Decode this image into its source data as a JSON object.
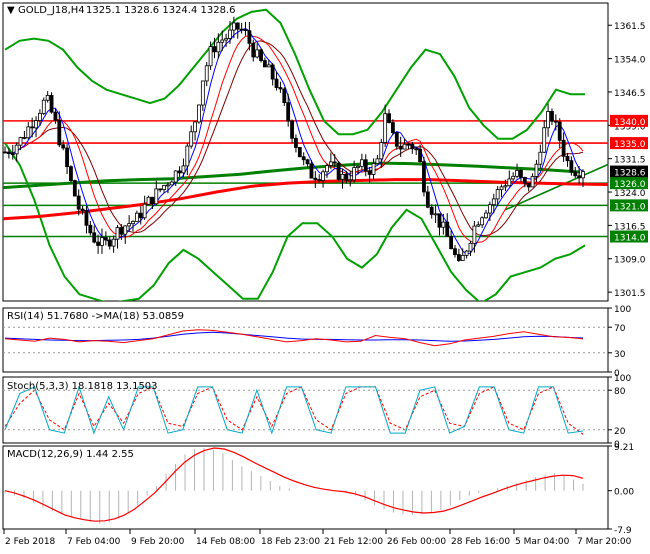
{
  "header": {
    "symbol_text": "GOLD_J18,H4",
    "ohlc_text": "1325.1 1328.6 1324.4 1328.6"
  },
  "rsi": {
    "label": "RSI(14) 51.7680  ->MA(18) 53.0859",
    "axis": [
      "100",
      "70",
      "30",
      "0"
    ]
  },
  "stoch": {
    "label": "Stoch(5,3,3) 18.1818 13.1503",
    "axis": [
      "100",
      "80",
      "20",
      "0"
    ]
  },
  "macd": {
    "label": "MACD(12,26,9) 1.44 2.55",
    "axis": [
      "9.21",
      "0.00",
      "-7.9"
    ]
  },
  "x_labels": [
    "2 Feb 2018",
    "7 Feb 04:00",
    "9 Feb 20:00",
    "14 Feb 08:00",
    "18 Feb 23:00",
    "21 Feb 12:00",
    "26 Feb 00:00",
    "28 Feb 16:00",
    "5 Mar 04:00",
    "7 Mar 20:00"
  ],
  "colors": {
    "candle": "#000000",
    "bollinger": "#00a000",
    "ma_slow": "#008000",
    "ma_red": "#ff0000",
    "ma_blue": "#0000ff",
    "ma_maroon": "#800000",
    "rsi_line": "#ff0000",
    "rsi_ma": "#0000ff",
    "stoch_main": "#00aac8",
    "stoch_signal": "#ff0000",
    "macd_hist": "#b4b4b4",
    "macd_signal": "#ff0000",
    "red_level": "#ff0000",
    "green_level": "#008000",
    "current_price_bg": "#000000"
  },
  "chart_data": [
    {
      "type": "candlestick",
      "title": "GOLD_J18,H4",
      "ylim": [
        1299.5,
        1366.5
      ],
      "y_ticks": [
        1301.5,
        1309.0,
        1316.5,
        1324.0,
        1331.5,
        1339.0,
        1346.5,
        1354.0,
        1361.5
      ],
      "y_tick_labels": [
        "1301.5",
        "1309.0",
        "1316.5",
        "1324.0",
        "1331.5",
        "1339.0",
        "1346.5",
        "1354.0",
        "1361.5"
      ],
      "current_price": 1328.6,
      "current_price_label": "1328.6",
      "levels": [
        {
          "value": 1340.0,
          "label": "1340.0",
          "kind": "red"
        },
        {
          "value": 1335.0,
          "label": "1335.0",
          "kind": "red"
        },
        {
          "value": 1326.0,
          "label": "1326.0",
          "kind": "green"
        },
        {
          "value": 1321.0,
          "label": "1321.0",
          "kind": "green"
        },
        {
          "value": 1314.0,
          "label": "1314.0",
          "kind": "green"
        }
      ],
      "close_path": [
        1333,
        1334,
        1336,
        1339,
        1342,
        1345,
        1340,
        1333,
        1326,
        1320,
        1316,
        1313,
        1312,
        1314,
        1316,
        1317,
        1318,
        1321,
        1323,
        1325,
        1327,
        1329,
        1333,
        1340,
        1350,
        1356,
        1358,
        1359,
        1361,
        1360,
        1356,
        1353,
        1351,
        1348,
        1342,
        1336,
        1331,
        1328,
        1328,
        1330,
        1329,
        1327,
        1328,
        1330,
        1329,
        1330,
        1341,
        1336,
        1334,
        1335,
        1333,
        1323,
        1319,
        1316,
        1312,
        1307,
        1312,
        1317,
        1320,
        1322,
        1325,
        1327,
        1328,
        1325,
        1327,
        1336,
        1342,
        1337,
        1331,
        1329,
        1328.6
      ],
      "trend_line": {
        "x": [
          0.83,
          0.93
        ],
        "y": [
          1320,
          1326
        ]
      },
      "bollinger_upper": [
        1356,
        1358,
        1358.5,
        1358,
        1356,
        1352,
        1349,
        1347,
        1346,
        1345,
        1344,
        1345,
        1348,
        1352,
        1356,
        1360,
        1363,
        1364.5,
        1365,
        1362,
        1355,
        1347,
        1340,
        1337,
        1337,
        1338,
        1342,
        1347,
        1352,
        1356,
        1355,
        1350,
        1343,
        1339,
        1336,
        1336,
        1338,
        1342,
        1347,
        1346,
        1346
      ],
      "bollinger_lower": [
        1335,
        1330,
        1322,
        1312,
        1305,
        1301,
        1300,
        1299,
        1299.5,
        1300,
        1303,
        1308,
        1311,
        1309,
        1306,
        1303,
        1300,
        1300,
        1306,
        1314,
        1317,
        1317,
        1314,
        1309,
        1307,
        1310,
        1316,
        1320,
        1318,
        1312,
        1306,
        1302,
        1299,
        1301,
        1305,
        1306,
        1307,
        1309,
        1310,
        1312
      ],
      "ma_slow_green": [
        1325,
        1325.5,
        1326,
        1326.5,
        1326.8,
        1327,
        1327.5,
        1328,
        1328.8,
        1329.5,
        1330,
        1330.5,
        1330.4,
        1330.1,
        1329.8,
        1329.4,
        1329.0,
        1328.5
      ],
      "ma_red_trend": [
        1318,
        1318.5,
        1319.3,
        1320.3,
        1321.3,
        1322.5,
        1324,
        1325.3,
        1326,
        1326.4,
        1326.6,
        1326.8,
        1326.8,
        1326.5,
        1326.2,
        1326,
        1325.8,
        1325.7
      ]
    },
    {
      "type": "line",
      "title": "RSI(14) 51.7680  ->MA(18) 53.0859",
      "ylim": [
        0,
        100
      ],
      "series": [
        {
          "name": "RSI(14)",
          "values": [
            52,
            50,
            48,
            53,
            51,
            47,
            49,
            48,
            46,
            49,
            52,
            58,
            64,
            66,
            65,
            62,
            59,
            55,
            51,
            47,
            49,
            52,
            50,
            47,
            48,
            57,
            54,
            52,
            46,
            41,
            44,
            50,
            53,
            56,
            60,
            63,
            59,
            55,
            54,
            51.77
          ]
        },
        {
          "name": "MA(18)",
          "values": [
            53,
            52,
            51,
            50,
            49.5,
            49,
            49,
            49.5,
            50,
            51,
            53,
            56,
            59,
            61,
            62,
            61,
            59,
            57,
            55,
            53,
            51.5,
            51,
            51,
            50.5,
            50,
            50,
            50.5,
            50.5,
            50,
            49,
            48,
            48.5,
            49.5,
            51,
            53,
            55,
            56,
            55.5,
            54,
            53.09
          ]
        }
      ]
    },
    {
      "type": "line",
      "title": "Stoch(5,3,3) 18.1818 13.1503",
      "ylim": [
        0,
        100
      ],
      "series": [
        {
          "name": "%K",
          "values": [
            20,
            75,
            85,
            20,
            15,
            85,
            15,
            70,
            20,
            85,
            85,
            15,
            20,
            85,
            85,
            20,
            15,
            80,
            15,
            85,
            85,
            20,
            15,
            85,
            85,
            85,
            15,
            15,
            80,
            85,
            15,
            25,
            85,
            85,
            20,
            15,
            85,
            85,
            15,
            18.18
          ]
        },
        {
          "name": "%D",
          "values": [
            25,
            60,
            80,
            35,
            20,
            75,
            25,
            60,
            30,
            75,
            85,
            30,
            25,
            75,
            85,
            35,
            20,
            70,
            25,
            75,
            85,
            35,
            20,
            75,
            85,
            85,
            30,
            20,
            70,
            80,
            30,
            25,
            75,
            85,
            30,
            20,
            75,
            85,
            30,
            13.15
          ]
        }
      ]
    },
    {
      "type": "bar",
      "title": "MACD(12,26,9) 1.44 2.55",
      "ylim": [
        -7.9,
        9.21
      ],
      "series": [
        {
          "name": "MACD",
          "values": [
            -0.5,
            -1,
            -1.5,
            -2.5,
            -3.5,
            -4.2,
            -4.8,
            -5.5,
            -6,
            -6.5,
            -6.8,
            -6.5,
            -5.8,
            -4.7,
            -3,
            -1,
            1,
            3.5,
            5.5,
            7.5,
            8.5,
            8.8,
            8.4,
            7.7,
            6.3,
            5,
            4,
            3,
            2,
            1,
            0.5,
            0,
            0,
            0,
            0,
            0,
            -0.3,
            -1,
            -2,
            -3,
            -3.8,
            -4.5,
            -4.9,
            -5,
            -4.9,
            -4.6,
            -4,
            -3,
            -2,
            -1,
            -0.5,
            0,
            0.5,
            1,
            1.5,
            2.2,
            2.8,
            3.3,
            3.6,
            3.2,
            2.3,
            1.44
          ]
        },
        {
          "name": "Signal",
          "values": [
            0,
            -0.5,
            -1.2,
            -2,
            -3,
            -4,
            -5,
            -5.6,
            -6,
            -6.3,
            -6.2,
            -5.8,
            -5,
            -3.8,
            -2.2,
            -0.5,
            1.6,
            3.8,
            5.8,
            7.3,
            8.3,
            8.8,
            8.6,
            7.9,
            6.9,
            5.8,
            4.8,
            3.8,
            2.8,
            2,
            1.3,
            0.7,
            0.3,
            0,
            -0.2,
            -0.6,
            -1.2,
            -2,
            -2.8,
            -3.5,
            -4,
            -4.4,
            -4.6,
            -4.5,
            -4.2,
            -3.6,
            -2.8,
            -2,
            -1.2,
            -0.5,
            0.3,
            1,
            1.6,
            2.1,
            2.6,
            3,
            3.2,
            3.1,
            2.55
          ]
        }
      ]
    }
  ]
}
